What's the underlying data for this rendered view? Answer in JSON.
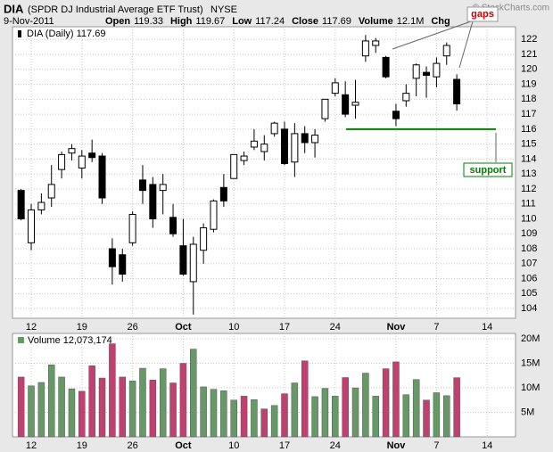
{
  "header": {
    "symbol": "DIA",
    "name": "(SPDR DJ Industrial Average ETF Trust)",
    "exchange": "NYSE",
    "source": "© StockCharts.com",
    "date": "9-Nov-2011",
    "fields": [
      {
        "label": "Open",
        "value": 119.33
      },
      {
        "label": "High",
        "value": 119.67
      },
      {
        "label": "Low",
        "value": 117.24
      },
      {
        "label": "Close",
        "value": 117.69
      },
      {
        "label": "Volume",
        "value": "12.1M"
      },
      {
        "label": "Chg"
      }
    ]
  },
  "chart_data": [
    {
      "type": "candlestick",
      "legend": "DIA (Daily) 117.69",
      "color": "#000000",
      "hollow_color": "#ffffff",
      "open": [
        111.9,
        108.4,
        110.6,
        111.4,
        113.3,
        114.4,
        113.4,
        114.4,
        114.2,
        108.0,
        107.6,
        108.4,
        112.6,
        112.3,
        111.9,
        110.1,
        108.2,
        105.8,
        107.9,
        109.3,
        112.1,
        112.7,
        113.9,
        114.8,
        114.5,
        115.7,
        116.0,
        113.8,
        115.7,
        115.1,
        116.7,
        118.4,
        118.3,
        117.6,
        120.9,
        121.6,
        120.8,
        117.2,
        117.9,
        119.4,
        119.8,
        119.5,
        120.9,
        119.33
      ],
      "high": [
        112.0,
        111.0,
        111.7,
        113.6,
        114.5,
        115.0,
        114.6,
        115.3,
        114.4,
        108.7,
        108.0,
        110.5,
        113.6,
        112.8,
        113.0,
        111.0,
        110.0,
        108.8,
        109.7,
        111.3,
        113.0,
        114.3,
        114.5,
        116.0,
        115.6,
        116.5,
        116.5,
        116.4,
        116.2,
        116.0,
        118.0,
        119.4,
        119.2,
        119.3,
        122.3,
        122.1,
        120.9,
        117.7,
        119.0,
        120.4,
        120.2,
        120.8,
        121.8,
        119.67
      ],
      "low": [
        109.9,
        107.9,
        110.3,
        110.8,
        112.7,
        113.9,
        112.7,
        113.8,
        111.0,
        105.6,
        105.8,
        108.2,
        111.0,
        109.4,
        110.3,
        108.8,
        106.2,
        103.6,
        107.0,
        109.1,
        110.8,
        112.7,
        113.6,
        114.6,
        113.9,
        115.5,
        113.6,
        112.8,
        114.4,
        114.1,
        116.5,
        118.2,
        116.8,
        116.7,
        120.5,
        121.1,
        119.4,
        116.2,
        117.5,
        118.2,
        118.1,
        118.8,
        120.3,
        117.24
      ],
      "close": [
        110.0,
        110.6,
        111.1,
        112.3,
        114.3,
        114.7,
        114.2,
        114.1,
        111.4,
        106.8,
        106.3,
        110.3,
        111.9,
        110.0,
        112.3,
        109.0,
        106.3,
        108.3,
        109.4,
        111.2,
        111.2,
        114.3,
        114.2,
        115.2,
        115.0,
        116.4,
        113.7,
        115.7,
        115.1,
        115.6,
        118.0,
        119.1,
        117.0,
        117.8,
        121.9,
        121.9,
        119.5,
        116.7,
        118.4,
        120.3,
        119.6,
        120.4,
        121.6,
        117.69
      ],
      "xlim": [
        -0.85,
        48.8
      ],
      "xticks": [
        {
          "value": 1,
          "label": "12"
        },
        {
          "value": 6,
          "label": "19"
        },
        {
          "value": 11,
          "label": "26"
        },
        {
          "value": 16,
          "label": "Oct"
        },
        {
          "value": 21,
          "label": "10"
        },
        {
          "value": 26,
          "label": "17"
        },
        {
          "value": 31,
          "label": "24"
        },
        {
          "value": 37,
          "label": "Nov"
        },
        {
          "value": 41,
          "label": "7"
        },
        {
          "value": 46,
          "label": "14"
        }
      ],
      "ylim": [
        103.35,
        122.85
      ],
      "yticks": [
        104,
        105,
        106,
        107,
        108,
        109,
        110,
        111,
        112,
        113,
        114,
        115,
        116,
        117,
        118,
        119,
        120,
        121,
        122
      ],
      "grid": true,
      "annotations": [
        {
          "text": "gaps",
          "color": "#cc0000"
        },
        {
          "text": "support",
          "value": 116,
          "color": "#008000"
        }
      ]
    },
    {
      "type": "bar",
      "legend": "Volume 12,073,174",
      "up_color": "#669966",
      "down_color": "#c04070",
      "values": [
        12.2,
        10.4,
        11.1,
        14.7,
        12.2,
        9.8,
        9.3,
        14.5,
        12.0,
        19.0,
        12.2,
        11.4,
        14.0,
        11.6,
        13.9,
        11.0,
        15.0,
        17.9,
        10.2,
        9.7,
        9.4,
        7.5,
        8.3,
        7.6,
        5.7,
        6.4,
        8.8,
        11.0,
        15.5,
        8.2,
        9.9,
        8.3,
        12.1,
        10.0,
        13.0,
        8.3,
        13.9,
        15.3,
        8.6,
        11.7,
        7.5,
        9.0,
        8.4,
        12.073174
      ],
      "xlim": [
        -0.85,
        48.8
      ],
      "xticks": [
        {
          "value": 1,
          "label": "12"
        },
        {
          "value": 6,
          "label": "19"
        },
        {
          "value": 11,
          "label": "26"
        },
        {
          "value": 16,
          "label": "Oct"
        },
        {
          "value": 21,
          "label": "10"
        },
        {
          "value": 26,
          "label": "17"
        },
        {
          "value": 31,
          "label": "24"
        },
        {
          "value": 37,
          "label": "Nov"
        },
        {
          "value": 41,
          "label": "7"
        },
        {
          "value": 46,
          "label": "14"
        }
      ],
      "ylim": [
        0,
        21.1
      ],
      "yticks": [
        {
          "value": 5,
          "label": "5M"
        },
        {
          "value": 10,
          "label": "10M"
        },
        {
          "value": 15,
          "label": "15M"
        },
        {
          "value": 20,
          "label": "20M"
        }
      ],
      "grid": true
    }
  ]
}
